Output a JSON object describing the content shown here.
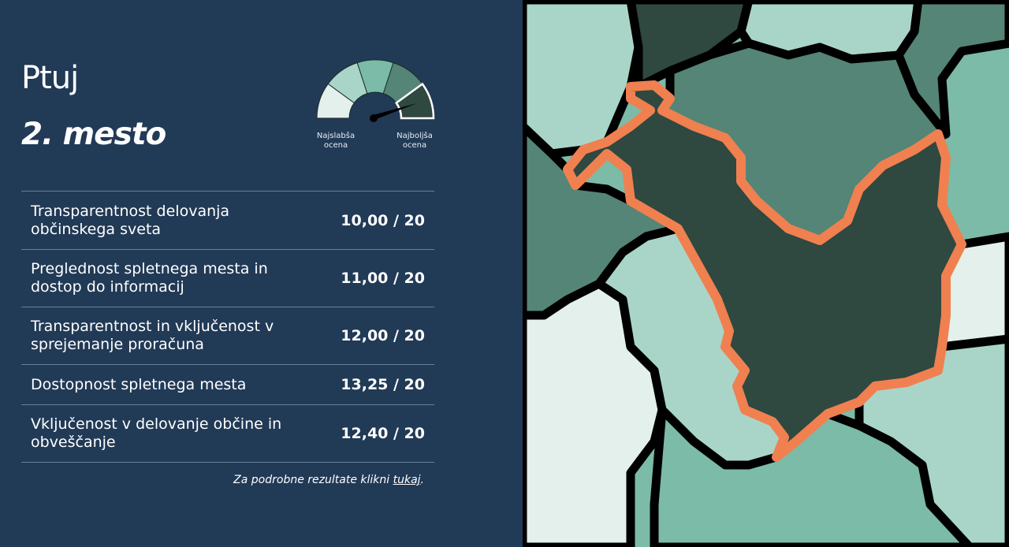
{
  "municipality": "Ptuj",
  "rank": "2. mesto",
  "gauge": {
    "segments": 5,
    "selected_segment": 5,
    "low_label": "Najslabša ocena",
    "high_label": "Najboljša ocena",
    "colors": [
      "#e3f0eb",
      "#a9d5c8",
      "#7bbba8",
      "#548576",
      "#2f4840"
    ]
  },
  "rows": [
    {
      "label": "Transparentnost delovanja občinskega sveta",
      "score": "10,00 / 20"
    },
    {
      "label": "Preglednost spletnega mesta in dostop do informacij",
      "score": "11,00 / 20"
    },
    {
      "label": "Transparentnost in vključenost v sprejemanje proračuna",
      "score": "12,00 / 20"
    },
    {
      "label": "Dostopnost spletnega mesta",
      "score": "13,25 / 20"
    },
    {
      "label": "Vključenost v delovanje občine in obveščanje",
      "score": "12,40 / 20"
    }
  ],
  "footer": {
    "text": "Za podrobne rezultate klikni ",
    "link": "tukaj",
    "end": "."
  },
  "colors": {
    "panel": "#213a56",
    "highlight_border": "#f08050",
    "border": "#000000"
  }
}
